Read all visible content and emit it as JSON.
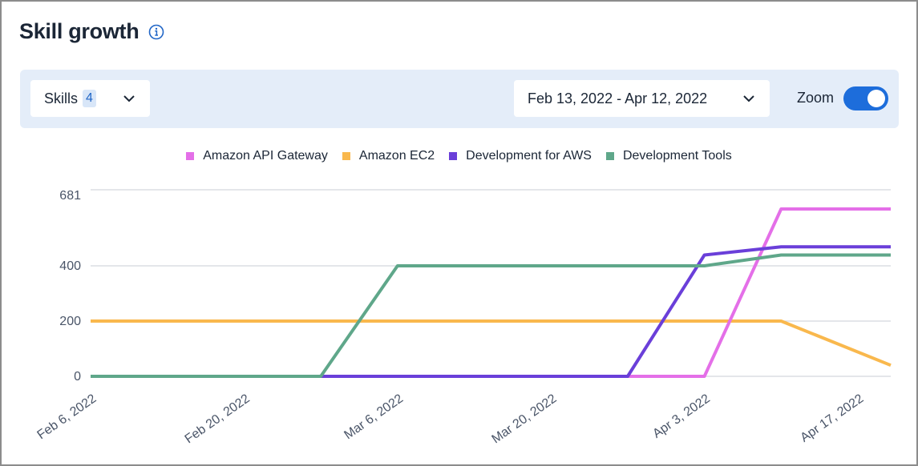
{
  "header": {
    "title": "Skill growth",
    "info_icon": "info-icon"
  },
  "toolbar": {
    "skills_label": "Skills",
    "skills_count": "4",
    "date_range": "Feb 13, 2022 - Apr 12, 2022",
    "zoom_label": "Zoom",
    "zoom_on": true
  },
  "colors": {
    "accent": "#1d6ddb",
    "toolbar_bg": "#e4edf9"
  },
  "chart_data": {
    "type": "line",
    "title": "",
    "xlabel": "",
    "ylabel": "",
    "ylim": [
      0,
      681
    ],
    "yticks": [
      0,
      200,
      400,
      681
    ],
    "xlim": [
      "2022-02-06",
      "2022-04-20"
    ],
    "xticks": [
      "Feb 6, 2022",
      "Feb 20, 2022",
      "Mar 6, 2022",
      "Mar 20, 2022",
      "Apr 3, 2022",
      "Apr 17, 2022"
    ],
    "xtick_dates": [
      "2022-02-06",
      "2022-02-20",
      "2022-03-06",
      "2022-03-20",
      "2022-04-03",
      "2022-04-17"
    ],
    "grid": true,
    "legend_position": "top-center",
    "series": [
      {
        "name": "Amazon API Gateway",
        "color": "#e46fe8",
        "points": [
          [
            "2022-02-27",
            0
          ],
          [
            "2022-04-03",
            0
          ],
          [
            "2022-04-10",
            610
          ],
          [
            "2022-04-20",
            610
          ]
        ]
      },
      {
        "name": "Amazon EC2",
        "color": "#f9b84d",
        "points": [
          [
            "2022-02-06",
            200
          ],
          [
            "2022-04-10",
            200
          ],
          [
            "2022-04-20",
            40
          ]
        ]
      },
      {
        "name": "Development for AWS",
        "color": "#6a3fd9",
        "points": [
          [
            "2022-02-06",
            0
          ],
          [
            "2022-03-27",
            0
          ],
          [
            "2022-04-03",
            440
          ],
          [
            "2022-04-10",
            470
          ],
          [
            "2022-04-20",
            470
          ]
        ]
      },
      {
        "name": "Development Tools",
        "color": "#5fa78a",
        "points": [
          [
            "2022-02-06",
            0
          ],
          [
            "2022-02-27",
            0
          ],
          [
            "2022-03-06",
            400
          ],
          [
            "2022-04-03",
            400
          ],
          [
            "2022-04-10",
            440
          ],
          [
            "2022-04-20",
            440
          ]
        ]
      }
    ]
  }
}
